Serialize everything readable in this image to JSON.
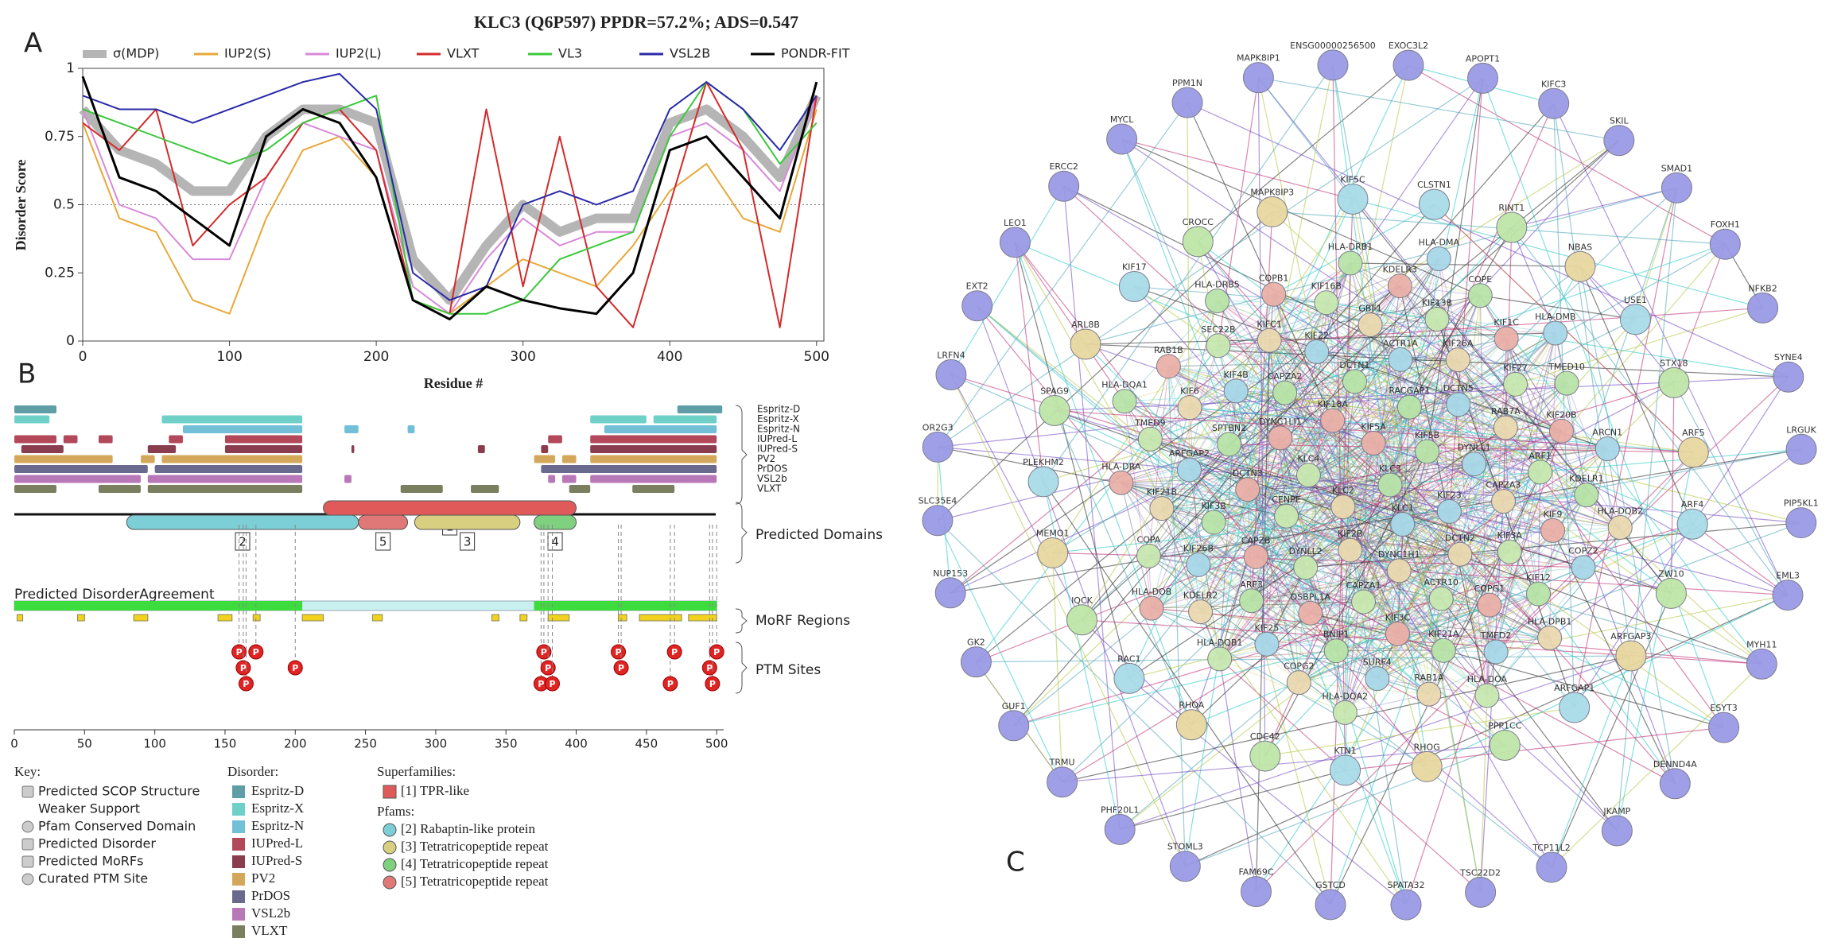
{
  "chart_data": {
    "type": "line",
    "panel": "A",
    "title": "KLC3 (Q6P597) PPDR=57.2%; ADS=0.547",
    "x_label": "Residue #",
    "y_label": "Disorder Score",
    "x": [
      0,
      25,
      50,
      75,
      100,
      125,
      150,
      175,
      200,
      225,
      250,
      275,
      300,
      325,
      350,
      375,
      400,
      425,
      450,
      475,
      500
    ],
    "series": [
      {
        "name": "σ(MDP)",
        "color": "#b5b5b5",
        "values": [
          0.85,
          0.7,
          0.65,
          0.55,
          0.55,
          0.75,
          0.85,
          0.85,
          0.8,
          0.3,
          0.15,
          0.35,
          0.5,
          0.4,
          0.45,
          0.45,
          0.8,
          0.85,
          0.75,
          0.6,
          0.9
        ]
      },
      {
        "name": "IUP2(S)",
        "color": "#e8a838",
        "values": [
          0.8,
          0.45,
          0.4,
          0.15,
          0.1,
          0.45,
          0.7,
          0.75,
          0.6,
          0.15,
          0.1,
          0.2,
          0.3,
          0.25,
          0.2,
          0.35,
          0.55,
          0.65,
          0.45,
          0.4,
          0.85
        ]
      },
      {
        "name": "IUP2(L)",
        "color": "#d88ad8",
        "values": [
          0.85,
          0.5,
          0.45,
          0.3,
          0.3,
          0.6,
          0.8,
          0.75,
          0.7,
          0.2,
          0.1,
          0.3,
          0.45,
          0.35,
          0.4,
          0.4,
          0.75,
          0.8,
          0.7,
          0.55,
          0.9
        ]
      },
      {
        "name": "VLXT",
        "color": "#d42a2a",
        "values": [
          0.8,
          0.7,
          0.85,
          0.35,
          0.5,
          0.6,
          0.8,
          0.85,
          0.7,
          0.15,
          0.1,
          0.85,
          0.2,
          0.75,
          0.2,
          0.05,
          0.5,
          0.95,
          0.7,
          0.05,
          0.9
        ]
      },
      {
        "name": "VL3",
        "color": "#3cc83c",
        "values": [
          0.85,
          0.8,
          0.75,
          0.7,
          0.65,
          0.7,
          0.8,
          0.85,
          0.9,
          0.15,
          0.1,
          0.1,
          0.15,
          0.3,
          0.35,
          0.4,
          0.75,
          0.95,
          0.85,
          0.65,
          0.8
        ]
      },
      {
        "name": "VSL2B",
        "color": "#2a2aa8",
        "values": [
          0.9,
          0.85,
          0.85,
          0.8,
          0.85,
          0.9,
          0.95,
          0.98,
          0.85,
          0.25,
          0.15,
          0.2,
          0.5,
          0.55,
          0.5,
          0.55,
          0.85,
          0.95,
          0.85,
          0.7,
          0.9
        ]
      },
      {
        "name": "PONDR-FIT",
        "color": "#000000",
        "values": [
          0.97,
          0.6,
          0.55,
          0.45,
          0.35,
          0.75,
          0.85,
          0.8,
          0.6,
          0.15,
          0.08,
          0.2,
          0.15,
          0.12,
          0.1,
          0.25,
          0.7,
          0.75,
          0.6,
          0.45,
          0.95
        ]
      }
    ],
    "xlim": [
      0,
      505
    ],
    "xticks": [
      0,
      100,
      200,
      300,
      400,
      500
    ],
    "ylim": [
      0,
      1
    ],
    "yticks": [
      0,
      0.25,
      0.5,
      0.75,
      1
    ],
    "threshold": 0.5
  },
  "panel_b": {
    "label": "B",
    "xlim": [
      0,
      505
    ],
    "xticks": [
      0,
      50,
      100,
      150,
      200,
      250,
      300,
      350,
      400,
      450,
      500
    ],
    "tracks": [
      {
        "name": "Espritz-D",
        "color": "#5f9ea6",
        "segments": [
          [
            0,
            30
          ],
          [
            472,
            504
          ]
        ]
      },
      {
        "name": "Espritz-X",
        "color": "#6fd0c8",
        "segments": [
          [
            0,
            25
          ],
          [
            105,
            205
          ],
          [
            410,
            450
          ],
          [
            455,
            500
          ]
        ]
      },
      {
        "name": "Espritz-N",
        "color": "#72bfd8",
        "segments": [
          [
            120,
            205
          ],
          [
            235,
            245
          ],
          [
            280,
            285
          ],
          [
            420,
            500
          ]
        ]
      },
      {
        "name": "IUPred-L",
        "color": "#b2485a",
        "segments": [
          [
            0,
            30
          ],
          [
            35,
            45
          ],
          [
            60,
            70
          ],
          [
            110,
            120
          ],
          [
            150,
            205
          ],
          [
            380,
            390
          ],
          [
            410,
            500
          ]
        ]
      },
      {
        "name": "IUPred-S",
        "color": "#8a3d4f",
        "segments": [
          [
            5,
            35
          ],
          [
            95,
            115
          ],
          [
            150,
            205
          ],
          [
            240,
            242
          ],
          [
            330,
            335
          ],
          [
            375,
            380
          ],
          [
            410,
            500
          ]
        ]
      },
      {
        "name": "PV2",
        "color": "#d4a85a",
        "segments": [
          [
            0,
            70
          ],
          [
            90,
            100
          ],
          [
            105,
            205
          ],
          [
            370,
            385
          ],
          [
            390,
            400
          ],
          [
            410,
            500
          ]
        ]
      },
      {
        "name": "PrDOS",
        "color": "#6a6a8f",
        "segments": [
          [
            0,
            95
          ],
          [
            100,
            205
          ],
          [
            375,
            500
          ]
        ]
      },
      {
        "name": "VSL2b",
        "color": "#b878b8",
        "segments": [
          [
            0,
            90
          ],
          [
            95,
            205
          ],
          [
            235,
            240
          ],
          [
            380,
            385
          ],
          [
            390,
            400
          ],
          [
            410,
            500
          ]
        ]
      },
      {
        "name": "VLXT",
        "color": "#7a7f60",
        "segments": [
          [
            0,
            30
          ],
          [
            60,
            90
          ],
          [
            95,
            205
          ],
          [
            275,
            305
          ],
          [
            325,
            345
          ],
          [
            395,
            410
          ],
          [
            440,
            470
          ]
        ]
      }
    ],
    "domains": [
      {
        "id": "1",
        "kind": "superfamily",
        "start": 220,
        "end": 400,
        "color": "#e05a5a"
      },
      {
        "id": "2",
        "kind": "pfam",
        "start": 80,
        "end": 245,
        "color": "#7ccfd6"
      },
      {
        "id": "5",
        "kind": "pfam",
        "start": 245,
        "end": 280,
        "color": "#e07878"
      },
      {
        "id": "3",
        "kind": "pfam",
        "start": 285,
        "end": 360,
        "color": "#d8d080"
      },
      {
        "id": "4",
        "kind": "pfam",
        "start": 370,
        "end": 400,
        "color": "#7fd07f"
      }
    ],
    "domains_label": "Predicted Domains",
    "agreement_label": "Predicted DisorderAgreement",
    "morf_label": "MoRF Regions",
    "ptm_label": "PTM Sites",
    "ptm_symbol": "P",
    "agreement_high": [
      [
        0,
        205
      ],
      [
        370,
        500
      ]
    ],
    "morfs": [
      [
        2,
        6
      ],
      [
        45,
        50
      ],
      [
        85,
        95
      ],
      [
        145,
        155
      ],
      [
        170,
        175
      ],
      [
        205,
        220
      ],
      [
        255,
        262
      ],
      [
        340,
        345
      ],
      [
        360,
        365
      ],
      [
        380,
        395
      ],
      [
        430,
        436
      ],
      [
        445,
        475
      ],
      [
        480,
        500
      ]
    ],
    "ptm_sites": [
      160,
      163,
      165,
      172,
      200,
      375,
      377,
      380,
      383,
      430,
      432,
      467,
      470,
      495,
      497,
      500
    ],
    "key_title": "Key:",
    "key_items": [
      "Predicted SCOP Structure",
      "Weaker Support",
      "Pfam Conserved Domain",
      "Predicted Disorder",
      "Predicted MoRFs",
      "Curated PTM Site"
    ],
    "disorder_title": "Disorder:",
    "superfamilies_title": "Superfamilies:",
    "superfamilies": [
      "[1] TPR-like"
    ],
    "pfams_title": "Pfams:",
    "pfams": [
      "[2] Rabaptin-like protein",
      "[3] Tetratricopeptide repeat",
      "[4] Tetratricopeptide repeat",
      "[5] Tetratricopeptide repeat"
    ]
  },
  "network": {
    "label": "C",
    "outer": [
      "EXOC3L2",
      "APOPT1",
      "KIFC3",
      "SKIL",
      "SMAD1",
      "FOXH1",
      "NFKB2",
      "SYNE4",
      "LRGUK",
      "PIP5KL1",
      "EML3",
      "MYH11",
      "ESYT3",
      "DENND4A",
      "JKAMP",
      "TCP11L2",
      "TSC22D2",
      "SPATA32",
      "GSTCD",
      "FAM69C",
      "STOML3",
      "PHF20L1",
      "TRMU",
      "GUF1",
      "GK2",
      "NUP153",
      "SLC35E4",
      "OR2G3",
      "LRFN4",
      "EXT2",
      "LEO1",
      "ERCC2",
      "MYCL",
      "PPM1N",
      "MAPK8IP1",
      "ENSG00000256500"
    ],
    "middle": [
      "CLSTN1",
      "RINT1",
      "NBAS",
      "USE1",
      "STX18",
      "ARF5",
      "ARF4",
      "ZW10",
      "ARFGAP3",
      "ARFGAP1",
      "PPP1CC",
      "RHOG",
      "KTN1",
      "CDC42",
      "RHOA",
      "RAC1",
      "IQCK",
      "MEMO1",
      "PLEKHM2",
      "SPAG9",
      "ARL8B",
      "KIF17",
      "CROCC",
      "MAPK8IP3",
      "KIF5C"
    ],
    "core": [
      "KLC3",
      "KLC2",
      "KIF5A",
      "KLC1",
      "KLC4",
      "KIF5B",
      "KIF2B",
      "KIF18A",
      "KIF23",
      "CENPE",
      "RACGAP1",
      "DYNC1H1",
      "DYNC1LI1",
      "DYNLL1",
      "DYNLL2",
      "DCTN1",
      "DCTN2",
      "DCTN3",
      "DCTN5",
      "CAPZA1",
      "CAPZA2",
      "CAPZA3",
      "CAPZB",
      "ACTR1A",
      "ACTR10",
      "SPTBN2",
      "RAB7A",
      "OSBPL1A",
      "KIF22",
      "KIF3A",
      "KIF3B",
      "KIF26A",
      "KIF3C",
      "KIF4B",
      "ARF1",
      "ARF3",
      "GBF1",
      "COPG1",
      "ARFGAP2",
      "KIF27",
      "BNIP1",
      "KIFC1",
      "KIF9",
      "KIF26B",
      "KIF13B",
      "KIF21A",
      "KIF6",
      "KIF20B",
      "KIF25",
      "KIF16B",
      "KIF12",
      "KIF21B",
      "KIF1C",
      "SURF4",
      "SEC22B",
      "KDELR1",
      "KDELR2",
      "KDELR3",
      "TMED2",
      "TMED9",
      "TMED10",
      "COPG2",
      "COPB1",
      "COPZ2",
      "COPA",
      "COPE",
      "RAB1A",
      "RAB1B",
      "ARCN1",
      "HLA-DQB1",
      "HLA-DRB1",
      "HLA-DPB1",
      "HLA-DRA",
      "HLA-DMB",
      "HLA-DQA2",
      "HLA-DRB5",
      "HLA-DQB2",
      "HLA-DOB",
      "HLA-DMA",
      "HLA-DOA",
      "HLA-DQA1"
    ]
  }
}
